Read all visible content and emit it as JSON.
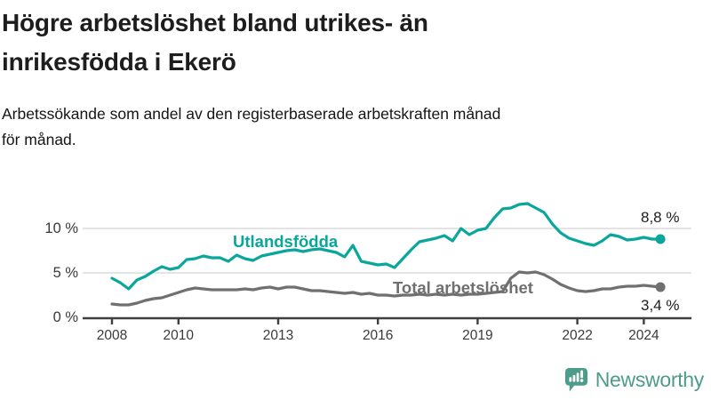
{
  "header": {
    "title": "Högre arbetslöshet bland utrikes- än inrikesfödda i Ekerö",
    "title_lines": [
      "Högre arbetslöshet bland utrikes- än",
      "inrikesfödda i Ekerö"
    ],
    "subtitle": "Arbetssökande som andel av den registerbaserade arbetskraften månad för månad.",
    "subtitle_lines": [
      "Arbetssökande som andel av den registerbaserade arbetskraften månad",
      "för månad."
    ]
  },
  "colors": {
    "accent_teal": "#0aa69c",
    "series_gray": "#707070",
    "grid": "#dcdcdc",
    "axis": "#3f3f3f",
    "axis_text": "#3a3a3a",
    "title_text": "#1d1d1d",
    "logo_teal": "#4d9c8b"
  },
  "chart_data": {
    "type": "line",
    "title": "Högre arbetslöshet bland utrikes- än inrikesfödda i Ekerö",
    "subtitle": "Arbetssökande som andel av den registerbaserade arbetskraften månad för månad.",
    "xlabel": "",
    "ylabel": "",
    "unit": "%",
    "grid": "horizontal",
    "legend_position": "inline-labels",
    "xlim": [
      2007.8,
      2025.4
    ],
    "ylim": [
      0,
      14
    ],
    "x_ticks": [
      {
        "value": 2008,
        "label": "2008"
      },
      {
        "value": 2010,
        "label": "2010"
      },
      {
        "value": 2013,
        "label": "2013"
      },
      {
        "value": 2016,
        "label": "2016"
      },
      {
        "value": 2019,
        "label": "2019"
      },
      {
        "value": 2022,
        "label": "2022"
      },
      {
        "value": 2024,
        "label": "2024"
      }
    ],
    "y_ticks": [
      {
        "value": 0,
        "label": "0 %"
      },
      {
        "value": 5,
        "label": "5 %"
      },
      {
        "value": 10,
        "label": "10 %"
      }
    ],
    "series": [
      {
        "name": "Utlandsfödda",
        "color": "#0aa69c",
        "end_label": "8,8 %",
        "end_value": 8.8,
        "points": [
          [
            2008.0,
            4.4
          ],
          [
            2008.25,
            3.9
          ],
          [
            2008.5,
            3.2
          ],
          [
            2008.75,
            4.2
          ],
          [
            2009.0,
            4.6
          ],
          [
            2009.25,
            5.2
          ],
          [
            2009.5,
            5.7
          ],
          [
            2009.75,
            5.4
          ],
          [
            2010.0,
            5.6
          ],
          [
            2010.25,
            6.5
          ],
          [
            2010.5,
            6.6
          ],
          [
            2010.75,
            6.9
          ],
          [
            2011.0,
            6.7
          ],
          [
            2011.25,
            6.7
          ],
          [
            2011.5,
            6.3
          ],
          [
            2011.75,
            7.0
          ],
          [
            2012.0,
            6.6
          ],
          [
            2012.25,
            6.4
          ],
          [
            2012.5,
            6.9
          ],
          [
            2012.75,
            7.1
          ],
          [
            2013.0,
            7.3
          ],
          [
            2013.25,
            7.5
          ],
          [
            2013.5,
            7.6
          ],
          [
            2013.75,
            7.4
          ],
          [
            2014.0,
            7.6
          ],
          [
            2014.25,
            7.7
          ],
          [
            2014.5,
            7.5
          ],
          [
            2014.75,
            7.3
          ],
          [
            2015.0,
            6.8
          ],
          [
            2015.25,
            8.1
          ],
          [
            2015.5,
            6.3
          ],
          [
            2015.75,
            6.1
          ],
          [
            2016.0,
            5.9
          ],
          [
            2016.25,
            6.0
          ],
          [
            2016.5,
            5.6
          ],
          [
            2016.75,
            6.6
          ],
          [
            2017.0,
            7.6
          ],
          [
            2017.25,
            8.5
          ],
          [
            2017.5,
            8.7
          ],
          [
            2017.75,
            8.9
          ],
          [
            2018.0,
            9.2
          ],
          [
            2018.25,
            8.6
          ],
          [
            2018.5,
            10.0
          ],
          [
            2018.75,
            9.3
          ],
          [
            2019.0,
            9.8
          ],
          [
            2019.25,
            10.0
          ],
          [
            2019.5,
            11.2
          ],
          [
            2019.75,
            12.2
          ],
          [
            2020.0,
            12.3
          ],
          [
            2020.25,
            12.7
          ],
          [
            2020.5,
            12.8
          ],
          [
            2020.75,
            12.3
          ],
          [
            2021.0,
            11.8
          ],
          [
            2021.25,
            10.5
          ],
          [
            2021.5,
            9.5
          ],
          [
            2021.75,
            8.9
          ],
          [
            2022.0,
            8.6
          ],
          [
            2022.25,
            8.3
          ],
          [
            2022.5,
            8.1
          ],
          [
            2022.75,
            8.6
          ],
          [
            2023.0,
            9.3
          ],
          [
            2023.25,
            9.1
          ],
          [
            2023.5,
            8.7
          ],
          [
            2023.75,
            8.8
          ],
          [
            2024.0,
            9.0
          ],
          [
            2024.25,
            8.8
          ],
          [
            2024.5,
            8.8
          ]
        ]
      },
      {
        "name": "Total arbetslöshet",
        "color": "#707070",
        "end_label": "3,4 %",
        "end_value": 3.4,
        "points": [
          [
            2008.0,
            1.5
          ],
          [
            2008.25,
            1.4
          ],
          [
            2008.5,
            1.4
          ],
          [
            2008.75,
            1.6
          ],
          [
            2009.0,
            1.9
          ],
          [
            2009.25,
            2.1
          ],
          [
            2009.5,
            2.2
          ],
          [
            2009.75,
            2.5
          ],
          [
            2010.0,
            2.8
          ],
          [
            2010.25,
            3.1
          ],
          [
            2010.5,
            3.3
          ],
          [
            2010.75,
            3.2
          ],
          [
            2011.0,
            3.1
          ],
          [
            2011.25,
            3.1
          ],
          [
            2011.5,
            3.1
          ],
          [
            2011.75,
            3.1
          ],
          [
            2012.0,
            3.2
          ],
          [
            2012.25,
            3.1
          ],
          [
            2012.5,
            3.3
          ],
          [
            2012.75,
            3.4
          ],
          [
            2013.0,
            3.2
          ],
          [
            2013.25,
            3.4
          ],
          [
            2013.5,
            3.4
          ],
          [
            2013.75,
            3.2
          ],
          [
            2014.0,
            3.0
          ],
          [
            2014.25,
            3.0
          ],
          [
            2014.5,
            2.9
          ],
          [
            2014.75,
            2.8
          ],
          [
            2015.0,
            2.7
          ],
          [
            2015.25,
            2.8
          ],
          [
            2015.5,
            2.6
          ],
          [
            2015.75,
            2.7
          ],
          [
            2016.0,
            2.5
          ],
          [
            2016.25,
            2.5
          ],
          [
            2016.5,
            2.4
          ],
          [
            2016.75,
            2.5
          ],
          [
            2017.0,
            2.5
          ],
          [
            2017.25,
            2.6
          ],
          [
            2017.5,
            2.5
          ],
          [
            2017.75,
            2.6
          ],
          [
            2018.0,
            2.5
          ],
          [
            2018.25,
            2.6
          ],
          [
            2018.5,
            2.5
          ],
          [
            2018.75,
            2.6
          ],
          [
            2019.0,
            2.6
          ],
          [
            2019.25,
            2.7
          ],
          [
            2019.5,
            2.8
          ],
          [
            2019.75,
            2.9
          ],
          [
            2020.0,
            4.4
          ],
          [
            2020.25,
            5.1
          ],
          [
            2020.5,
            5.0
          ],
          [
            2020.75,
            5.1
          ],
          [
            2021.0,
            4.8
          ],
          [
            2021.25,
            4.3
          ],
          [
            2021.5,
            3.7
          ],
          [
            2021.75,
            3.3
          ],
          [
            2022.0,
            3.0
          ],
          [
            2022.25,
            2.9
          ],
          [
            2022.5,
            3.0
          ],
          [
            2022.75,
            3.2
          ],
          [
            2023.0,
            3.2
          ],
          [
            2023.25,
            3.4
          ],
          [
            2023.5,
            3.5
          ],
          [
            2023.75,
            3.5
          ],
          [
            2024.0,
            3.6
          ],
          [
            2024.25,
            3.5
          ],
          [
            2024.5,
            3.4
          ]
        ]
      }
    ]
  },
  "branding": {
    "name": "Newsworthy"
  }
}
